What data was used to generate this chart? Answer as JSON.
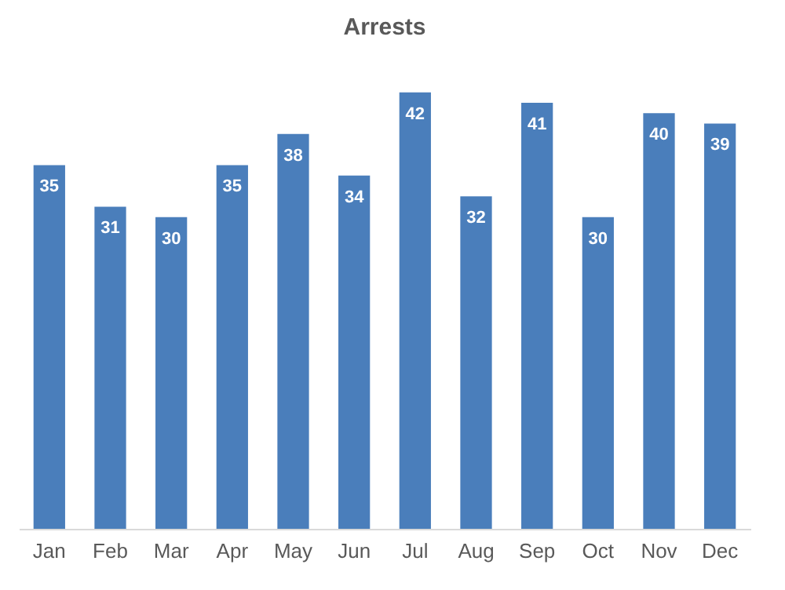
{
  "chart_data": {
    "type": "bar",
    "title": "Arrests",
    "categories": [
      "Jan",
      "Feb",
      "Mar",
      "Apr",
      "May",
      "Jun",
      "Jul",
      "Aug",
      "Sep",
      "Oct",
      "Nov",
      "Dec"
    ],
    "values": [
      35,
      31,
      30,
      35,
      38,
      34,
      42,
      32,
      41,
      30,
      40,
      39
    ],
    "color": "#4a7ebb",
    "data_labels": true
  }
}
